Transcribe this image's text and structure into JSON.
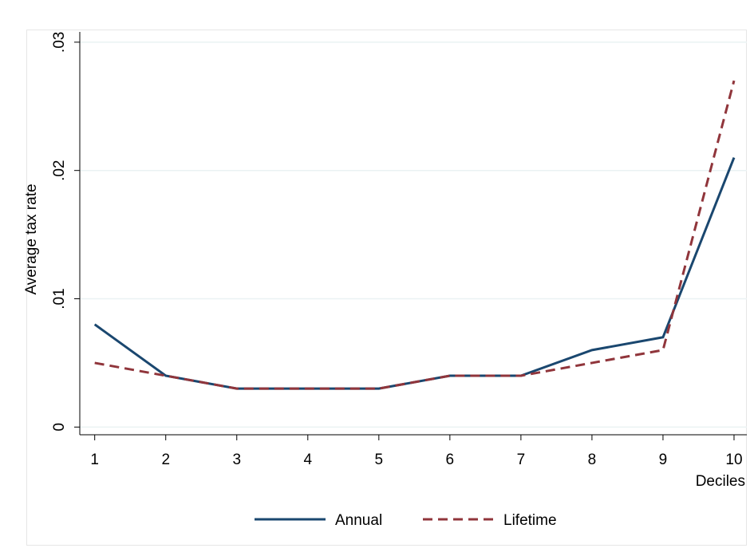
{
  "chart_data": {
    "type": "line",
    "x_label": "Deciles",
    "y_label": "Average tax rate",
    "x": [
      1,
      2,
      3,
      4,
      5,
      6,
      7,
      8,
      9,
      10
    ],
    "series": [
      {
        "name": "Annual",
        "color": "#1a476f",
        "dash": false,
        "values": [
          0.008,
          0.004,
          0.003,
          0.003,
          0.003,
          0.004,
          0.004,
          0.006,
          0.007,
          0.021
        ]
      },
      {
        "name": "Lifetime",
        "color": "#90353b",
        "dash": true,
        "values": [
          0.005,
          0.004,
          0.003,
          0.003,
          0.003,
          0.004,
          0.004,
          0.005,
          0.006,
          0.027
        ]
      }
    ],
    "xlim": [
      0.79,
      10.18
    ],
    "xticks": [
      1,
      2,
      3,
      4,
      5,
      6,
      7,
      8,
      9,
      10
    ],
    "ylim": [
      -0.0006,
      0.0308
    ],
    "yticks": [
      0,
      {
        "value": 0.01,
        "label": ".01"
      },
      {
        "value": 0.02,
        "label": ".02"
      },
      {
        "value": 0.03,
        "label": ".03"
      }
    ],
    "grid": true,
    "legend": "bottom"
  }
}
